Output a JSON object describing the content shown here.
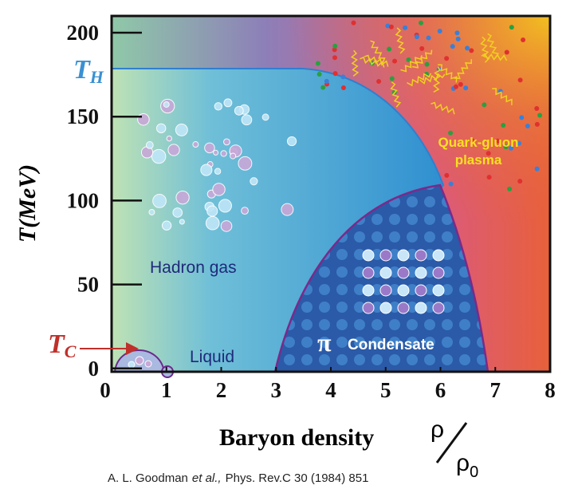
{
  "diagram": {
    "xlim": [
      0,
      8
    ],
    "ylim": [
      -2,
      210
    ],
    "xticks": [
      0,
      1,
      2,
      3,
      4,
      5,
      6,
      7,
      8
    ],
    "yticks": [
      0,
      50,
      100,
      150,
      200
    ],
    "y_label": "T(MeV)",
    "x_label": "Baryon density",
    "x_unit": {
      "numerator": "ρ",
      "denominator": "ρ",
      "subscript": "0"
    },
    "th": {
      "symbol": "T",
      "subscript": "H"
    },
    "tc": {
      "symbol": "T",
      "subscript": "C"
    },
    "regions": {
      "hadron": "Hadron gas",
      "liquid": "Liquid",
      "condensate_symbol": "π",
      "condensate": "Condensate",
      "qgp": [
        "Quark-gluon",
        "plasma"
      ]
    },
    "citation": {
      "authors": "A. L. Goodman",
      "etal": "et al.,",
      "ref": "Phys. Rev.C 30 (1984) 851"
    }
  }
}
